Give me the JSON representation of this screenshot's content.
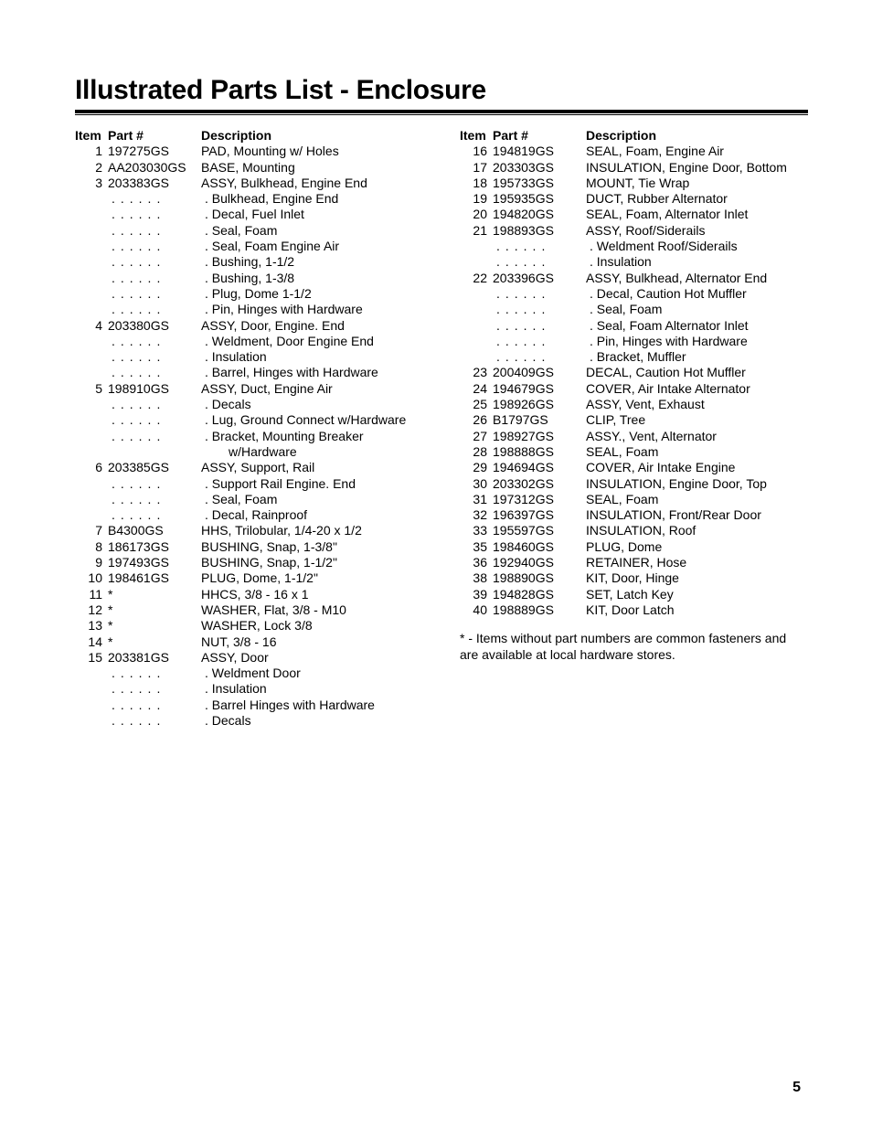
{
  "page": {
    "title": "Illustrated Parts List - Enclosure",
    "page_number": "5",
    "footnote": "* - Items without part numbers are common fasteners and are available at local hardware stores.",
    "headers": {
      "item": "Item",
      "part": "Part #",
      "desc": "Description"
    },
    "left": [
      {
        "item": "1",
        "part": "197275GS",
        "desc": "PAD, Mounting w/ Holes"
      },
      {
        "item": "2",
        "part": "AA203030GS",
        "desc": "BASE, Mounting"
      },
      {
        "item": "3",
        "part": "203383GS",
        "desc": "ASSY, Bulkhead, Engine End"
      },
      {
        "sub": true,
        "desc": ". Bulkhead, Engine End"
      },
      {
        "sub": true,
        "desc": ". Decal, Fuel Inlet"
      },
      {
        "sub": true,
        "desc": ". Seal, Foam"
      },
      {
        "sub": true,
        "desc": ". Seal, Foam Engine Air"
      },
      {
        "sub": true,
        "desc": ". Bushing, 1-1/2"
      },
      {
        "sub": true,
        "desc": ". Bushing, 1-3/8"
      },
      {
        "sub": true,
        "desc": ". Plug, Dome 1-1/2"
      },
      {
        "sub": true,
        "desc": ". Pin, Hinges with Hardware"
      },
      {
        "item": "4",
        "part": "203380GS",
        "desc": "ASSY, Door, Engine. End"
      },
      {
        "sub": true,
        "desc": ". Weldment, Door Engine End"
      },
      {
        "sub": true,
        "desc": ". Insulation"
      },
      {
        "sub": true,
        "desc": ". Barrel, Hinges with Hardware"
      },
      {
        "item": "5",
        "part": "198910GS",
        "desc": "ASSY, Duct, Engine Air"
      },
      {
        "sub": true,
        "desc": ". Decals"
      },
      {
        "sub": true,
        "desc": ". Lug, Ground Connect w/Hardware"
      },
      {
        "sub": true,
        "desc": ". Bracket, Mounting Breaker"
      },
      {
        "cont": true,
        "desc": "w/Hardware"
      },
      {
        "item": "6",
        "part": "203385GS",
        "desc": "ASSY, Support, Rail"
      },
      {
        "sub": true,
        "desc": ". Support Rail Engine. End"
      },
      {
        "sub": true,
        "desc": ". Seal, Foam"
      },
      {
        "sub": true,
        "desc": ". Decal, Rainproof"
      },
      {
        "item": "7",
        "part": "B4300GS",
        "desc": "HHS, Trilobular, 1/4-20 x 1/2"
      },
      {
        "item": "8",
        "part": "186173GS",
        "desc": "BUSHING, Snap, 1-3/8\""
      },
      {
        "item": "9",
        "part": "197493GS",
        "desc": "BUSHING, Snap, 1-1/2\""
      },
      {
        "item": "10",
        "part": "198461GS",
        "desc": "PLUG, Dome, 1-1/2\""
      },
      {
        "item": "11",
        "part": "*",
        "desc": "HHCS, 3/8 - 16 x 1"
      },
      {
        "item": "12",
        "part": "*",
        "desc": "WASHER, Flat, 3/8 - M10"
      },
      {
        "item": "13",
        "part": "*",
        "desc": "WASHER, Lock 3/8"
      },
      {
        "item": "14",
        "part": "*",
        "desc": "NUT, 3/8 - 16"
      },
      {
        "item": "15",
        "part": "203381GS",
        "desc": "ASSY, Door"
      },
      {
        "sub": true,
        "desc": ". Weldment Door"
      },
      {
        "sub": true,
        "desc": ". Insulation"
      },
      {
        "sub": true,
        "desc": ". Barrel Hinges with Hardware"
      },
      {
        "sub": true,
        "desc": ". Decals"
      }
    ],
    "right": [
      {
        "item": "16",
        "part": "194819GS",
        "desc": "SEAL, Foam, Engine Air"
      },
      {
        "item": "17",
        "part": "203303GS",
        "desc": "INSULATION, Engine Door, Bottom"
      },
      {
        "item": "18",
        "part": "195733GS",
        "desc": "MOUNT, Tie Wrap"
      },
      {
        "item": "19",
        "part": "195935GS",
        "desc": "DUCT, Rubber Alternator"
      },
      {
        "item": "20",
        "part": "194820GS",
        "desc": "SEAL, Foam, Alternator Inlet"
      },
      {
        "item": "21",
        "part": "198893GS",
        "desc": "ASSY, Roof/Siderails"
      },
      {
        "sub": true,
        "desc": ". Weldment Roof/Siderails"
      },
      {
        "sub": true,
        "desc": ". Insulation"
      },
      {
        "item": "22",
        "part": "203396GS",
        "desc": "ASSY, Bulkhead, Alternator End"
      },
      {
        "sub": true,
        "desc": ". Decal, Caution Hot Muffler"
      },
      {
        "sub": true,
        "desc": ". Seal, Foam"
      },
      {
        "sub": true,
        "desc": ". Seal, Foam Alternator Inlet"
      },
      {
        "sub": true,
        "desc": ". Pin, Hinges with Hardware"
      },
      {
        "sub": true,
        "desc": ". Bracket, Muffler"
      },
      {
        "item": "23",
        "part": "200409GS",
        "desc": "DECAL, Caution Hot Muffler"
      },
      {
        "item": "24",
        "part": "194679GS",
        "desc": "COVER, Air Intake Alternator"
      },
      {
        "item": "25",
        "part": "198926GS",
        "desc": "ASSY, Vent, Exhaust"
      },
      {
        "item": "26",
        "part": "B1797GS",
        "desc": "CLIP, Tree"
      },
      {
        "item": "27",
        "part": "198927GS",
        "desc": "ASSY., Vent, Alternator"
      },
      {
        "item": "28",
        "part": "198888GS",
        "desc": "SEAL, Foam"
      },
      {
        "item": "29",
        "part": "194694GS",
        "desc": "COVER, Air Intake Engine"
      },
      {
        "item": "30",
        "part": "203302GS",
        "desc": "INSULATION, Engine Door, Top"
      },
      {
        "item": "31",
        "part": "197312GS",
        "desc": "SEAL, Foam"
      },
      {
        "item": "32",
        "part": "196397GS",
        "desc": "INSULATION, Front/Rear Door"
      },
      {
        "item": "33",
        "part": "195597GS",
        "desc": "INSULATION, Roof"
      },
      {
        "item": "35",
        "part": "198460GS",
        "desc": "PLUG, Dome"
      },
      {
        "item": "36",
        "part": "192940GS",
        "desc": "RETAINER, Hose"
      },
      {
        "item": "38",
        "part": "198890GS",
        "desc": "KIT, Door, Hinge"
      },
      {
        "item": "39",
        "part": "194828GS",
        "desc": "SET, Latch Key"
      },
      {
        "item": "40",
        "part": "198889GS",
        "desc": "KIT, Door Latch"
      }
    ]
  }
}
